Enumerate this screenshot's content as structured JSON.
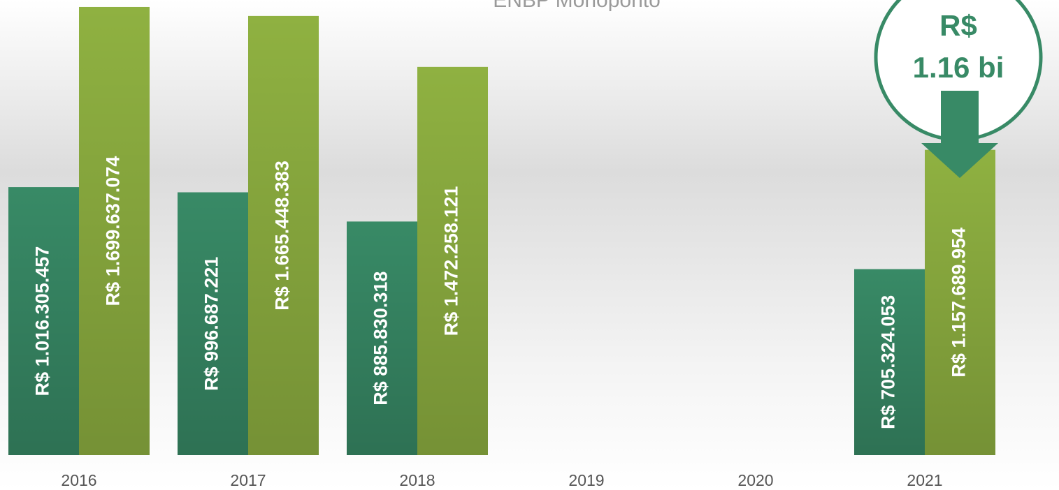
{
  "chart_data": {
    "type": "bar",
    "title": "ENBP Monoponto",
    "categories": [
      "2016",
      "2017",
      "2018",
      "2019",
      "2020",
      "2021"
    ],
    "series": [
      {
        "color": "#388a66",
        "values": [
          1016305457,
          996687221,
          885830318,
          null,
          null,
          705324053
        ],
        "value_labels": [
          "R$ 1.016.305.457",
          "R$ 996.687.221",
          "R$ 885.830.318",
          null,
          null,
          "R$ 705.324.053"
        ]
      },
      {
        "color": "#8fb141",
        "values": [
          1699637074,
          1665448383,
          1472258121,
          null,
          null,
          1157689954
        ],
        "value_labels": [
          "R$ 1.699.637.074",
          "R$ 1.665.448.383",
          "R$ 1.472.258.121",
          null,
          null,
          "R$ 1.157.689.954"
        ]
      }
    ],
    "ylim": [
      0,
      1726000000
    ],
    "annotation": [
      "R$",
      "1.16 bi"
    ]
  }
}
